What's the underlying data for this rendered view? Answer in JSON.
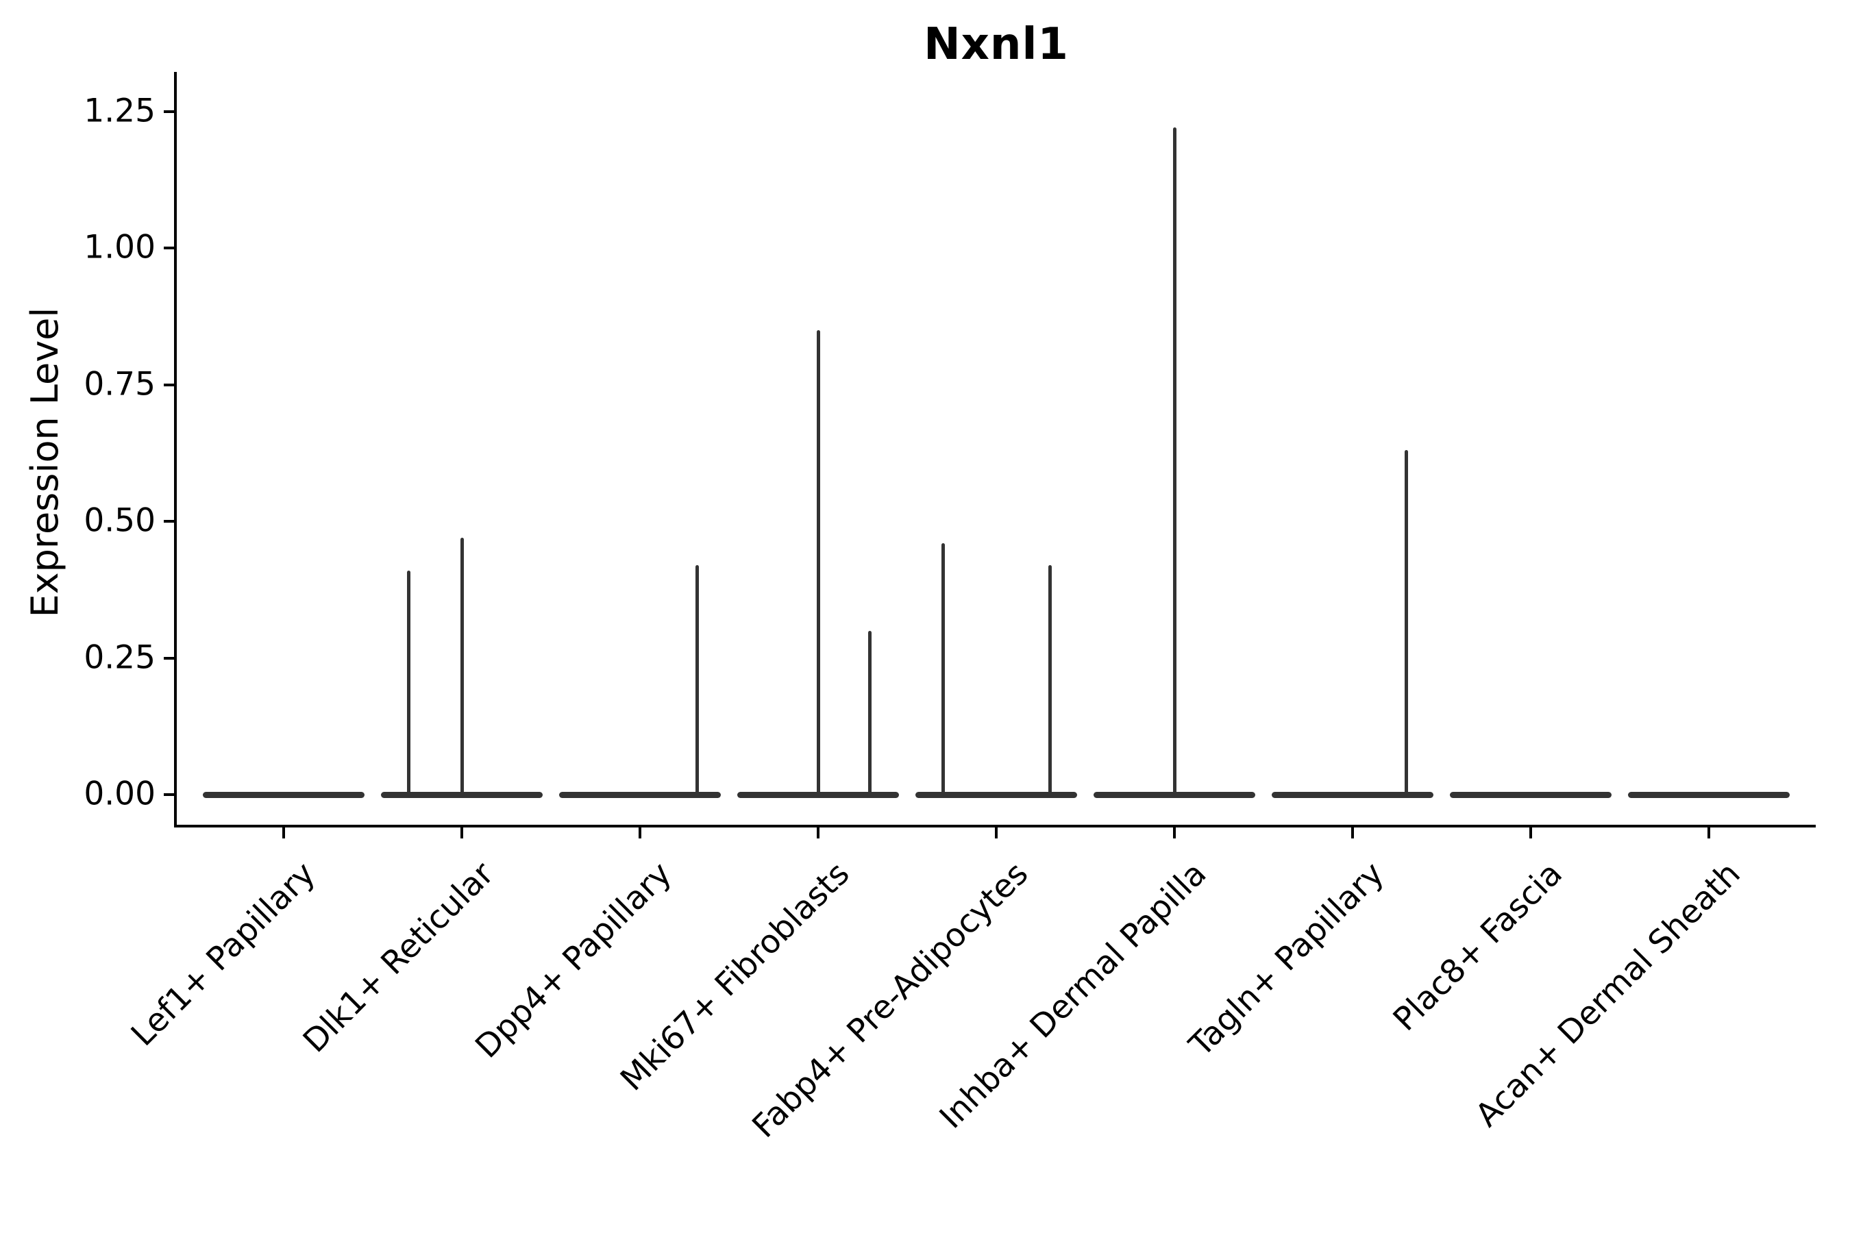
{
  "style": {
    "violin_color": "#333333",
    "axis_color": "#000000",
    "background": "#ffffff"
  },
  "chart_data": {
    "type": "violin",
    "title": "Nxnl1",
    "xlabel": "",
    "ylabel": "Expression Level",
    "ylim": [
      -0.06,
      1.33
    ],
    "grid": false,
    "legend": false,
    "y_ticks": [
      {
        "v": 0.0,
        "label": "0.00"
      },
      {
        "v": 0.25,
        "label": "0.25"
      },
      {
        "v": 0.5,
        "label": "0.50"
      },
      {
        "v": 0.75,
        "label": "0.75"
      },
      {
        "v": 1.0,
        "label": "1.00"
      },
      {
        "v": 1.25,
        "label": "1.25"
      }
    ],
    "categories": [
      "Lef1+ Papillary",
      "Dlk1+ Reticular",
      "Dpp4+ Papillary",
      "Mki67+ Fibroblasts",
      "Fabp4+ Pre-Adipocytes",
      "Inhba+ Dermal Papilla",
      "Tagln+ Papillary",
      "Plac8+ Fascia",
      "Acan+ Dermal Sheath"
    ],
    "violins": [
      {
        "category": "Lef1+ Papillary",
        "baseline_value": 0,
        "spikes": []
      },
      {
        "category": "Dlk1+ Reticular",
        "baseline_value": 0,
        "spikes": [
          {
            "offset": -0.3,
            "value": 0.41
          },
          {
            "offset": 0.0,
            "value": 0.47
          }
        ]
      },
      {
        "category": "Dpp4+ Papillary",
        "baseline_value": 0,
        "spikes": [
          {
            "offset": 0.32,
            "value": 0.42
          }
        ]
      },
      {
        "category": "Mki67+ Fibroblasts",
        "baseline_value": 0,
        "spikes": [
          {
            "offset": 0.0,
            "value": 0.85
          },
          {
            "offset": 0.29,
            "value": 0.3
          }
        ]
      },
      {
        "category": "Fabp4+ Pre-Adipocytes",
        "baseline_value": 0,
        "spikes": [
          {
            "offset": -0.3,
            "value": 0.46
          },
          {
            "offset": 0.3,
            "value": 0.42
          }
        ]
      },
      {
        "category": "Inhba+ Dermal Papilla",
        "baseline_value": 0,
        "spikes": [
          {
            "offset": 0.0,
            "value": 1.22
          }
        ]
      },
      {
        "category": "Tagln+ Papillary",
        "baseline_value": 0,
        "spikes": [
          {
            "offset": 0.3,
            "value": 0.63
          }
        ]
      },
      {
        "category": "Plac8+ Fascia",
        "baseline_value": 0,
        "spikes": []
      },
      {
        "category": "Acan+ Dermal Sheath",
        "baseline_value": 0,
        "spikes": []
      }
    ]
  }
}
